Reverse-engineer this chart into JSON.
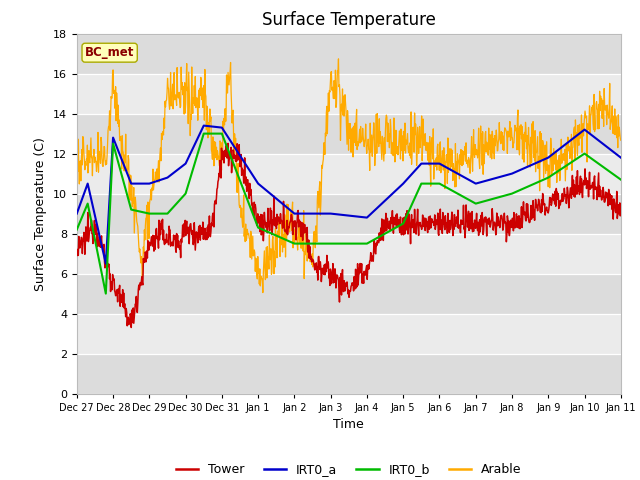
{
  "title": "Surface Temperature",
  "ylabel": "Surface Temperature (C)",
  "xlabel": "Time",
  "ylim": [
    0,
    18
  ],
  "yticks": [
    0,
    2,
    4,
    6,
    8,
    10,
    12,
    14,
    16,
    18
  ],
  "x_labels": [
    "Dec 27",
    "Dec 28",
    "Dec 29",
    "Dec 30",
    "Dec 31",
    "Jan 1",
    "Jan 2",
    "Jan 3",
    "Jan 4",
    "Jan 5",
    "Jan 6",
    "Jan 7",
    "Jan 8",
    "Jan 9",
    "Jan 10",
    "Jan 11"
  ],
  "tower_color": "#cc0000",
  "irta_color": "#0000cc",
  "irtb_color": "#00bb00",
  "arable_color": "#ffaa00",
  "bc_met_text": "BC_met",
  "legend_labels": [
    "Tower",
    "IRT0_a",
    "IRT0_b",
    "Arable"
  ],
  "title_fontsize": 12,
  "axis_fontsize": 9,
  "tick_fontsize": 8,
  "band_dark": "#dcdcdc",
  "band_light": "#ebebeb"
}
